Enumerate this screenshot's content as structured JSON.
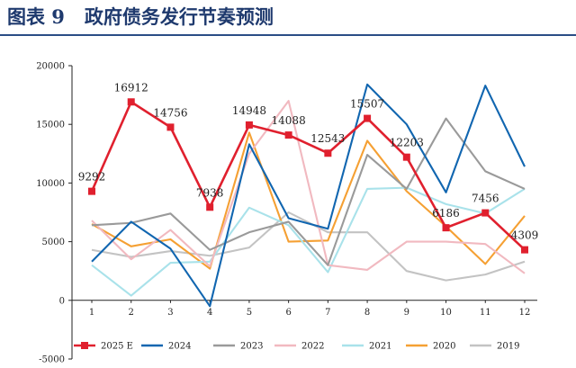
{
  "figure_title": "图表 9   政府债务发行节奏预测",
  "chart_data": {
    "type": "line",
    "categories": [
      "1",
      "2",
      "3",
      "4",
      "5",
      "6",
      "7",
      "8",
      "9",
      "10",
      "11",
      "12"
    ],
    "ylim": [
      -5000,
      20000
    ],
    "yticks": [
      -5000,
      0,
      5000,
      10000,
      15000,
      20000
    ],
    "grid": false,
    "legend_position": "bottom",
    "series": [
      {
        "name": "2025 E",
        "color": "#e0202e",
        "marker": "square",
        "labeled": true,
        "values": [
          9292,
          16912,
          14756,
          7938,
          14948,
          14088,
          12543,
          15507,
          12203,
          6186,
          7456,
          4309
        ]
      },
      {
        "name": "2024",
        "color": "#1166b0",
        "values": [
          3300,
          6700,
          4400,
          -500,
          13300,
          7000,
          6100,
          18400,
          15000,
          9200,
          18300,
          11400
        ]
      },
      {
        "name": "2023",
        "color": "#9a9a9a",
        "values": [
          6400,
          6600,
          7400,
          4300,
          5800,
          6700,
          3000,
          12400,
          9500,
          15500,
          11000,
          9500
        ]
      },
      {
        "name": "2022",
        "color": "#f1b9c0",
        "values": [
          6800,
          3500,
          6000,
          2900,
          12500,
          17000,
          3000,
          2600,
          5000,
          5000,
          4800,
          2300
        ]
      },
      {
        "name": "2021",
        "color": "#a9e2ea",
        "values": [
          3000,
          400,
          3200,
          3300,
          7900,
          6400,
          2400,
          9500,
          9600,
          8200,
          7400,
          9500
        ]
      },
      {
        "name": "2020",
        "color": "#f5a033",
        "values": [
          6500,
          4600,
          5200,
          2700,
          14300,
          5000,
          5100,
          13600,
          9300,
          6300,
          3100,
          7200
        ]
      },
      {
        "name": "2019",
        "color": "#c3c3c3",
        "values": [
          4300,
          3700,
          4200,
          3800,
          4500,
          7500,
          5800,
          5800,
          2500,
          1700,
          2200,
          3300
        ]
      }
    ]
  }
}
